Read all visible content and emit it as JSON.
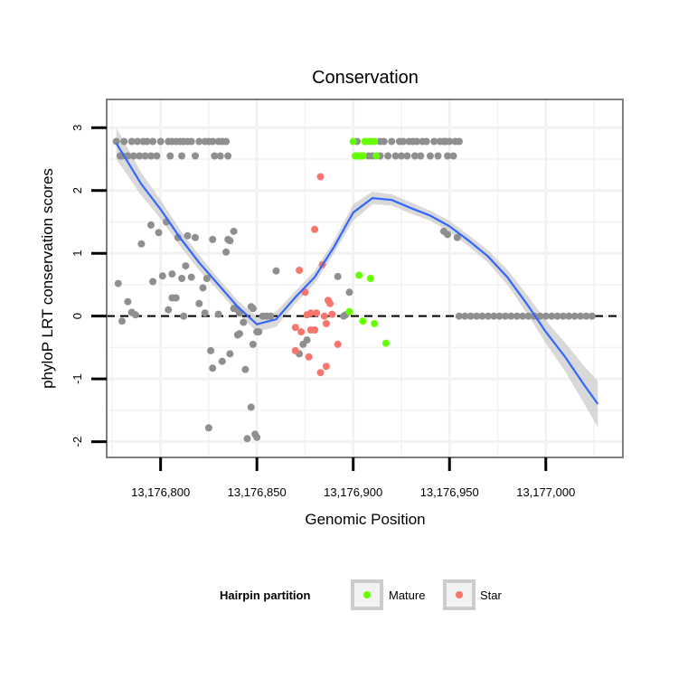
{
  "chart_data": {
    "type": "scatter",
    "title": "Conservation",
    "xlabel": "Genomic Position",
    "ylabel": "phyloP LRT conservation scores",
    "xlim": [
      13176772,
      13177040
    ],
    "ylim": [
      -2.25,
      3.45
    ],
    "x_ticks": [
      13176800,
      13176850,
      13176900,
      13176950,
      13177000
    ],
    "x_tick_labels": [
      "13,176,800",
      "13,176,850",
      "13,176,900",
      "13,176,950",
      "13,177,000"
    ],
    "y_ticks": [
      -2,
      -1,
      0,
      1,
      2,
      3
    ],
    "y_tick_labels": [
      "-2",
      "-1",
      "0",
      "1",
      "2",
      "3"
    ],
    "reference_line": 0,
    "legend": {
      "title": "Hairpin partition",
      "position": "bottom",
      "entries": [
        {
          "label": "Mature",
          "color": "#66ff00"
        },
        {
          "label": "Star",
          "color": "#f8766d"
        }
      ]
    },
    "colors": {
      "other": "#8f8f8f",
      "Mature": "#66ff00",
      "Star": "#f8766d",
      "smooth": "#3366ff",
      "band": "#cccccc"
    },
    "series": [
      {
        "name": "Other",
        "points": [
          [
            13176777,
            2.78
          ],
          [
            13176779,
            2.55
          ],
          [
            13176780,
            2.55
          ],
          [
            13176781,
            2.78
          ],
          [
            13176783,
            2.55
          ],
          [
            13176785,
            2.78
          ],
          [
            13176786,
            2.55
          ],
          [
            13176788,
            2.78
          ],
          [
            13176789,
            2.55
          ],
          [
            13176791,
            2.78
          ],
          [
            13176792,
            2.55
          ],
          [
            13176793,
            2.78
          ],
          [
            13176795,
            2.55
          ],
          [
            13176796,
            2.78
          ],
          [
            13176798,
            2.55
          ],
          [
            13176800,
            2.78
          ],
          [
            13176804,
            2.78
          ],
          [
            13176805,
            2.55
          ],
          [
            13176806,
            2.78
          ],
          [
            13176808,
            2.78
          ],
          [
            13176810,
            2.78
          ],
          [
            13176811,
            2.55
          ],
          [
            13176812,
            2.78
          ],
          [
            13176814,
            2.78
          ],
          [
            13176816,
            2.78
          ],
          [
            13176818,
            2.55
          ],
          [
            13176820,
            2.78
          ],
          [
            13176823,
            2.78
          ],
          [
            13176825,
            2.78
          ],
          [
            13176827,
            2.78
          ],
          [
            13176828,
            2.55
          ],
          [
            13176830,
            2.78
          ],
          [
            13176831,
            2.55
          ],
          [
            13176832,
            2.78
          ],
          [
            13176834,
            2.78
          ],
          [
            13176835,
            2.55
          ],
          [
            13176778,
            0.52
          ],
          [
            13176780,
            -0.08
          ],
          [
            13176783,
            0.23
          ],
          [
            13176785,
            0.06
          ],
          [
            13176787,
            0.02
          ],
          [
            13176790,
            1.15
          ],
          [
            13176795,
            1.45
          ],
          [
            13176796,
            0.55
          ],
          [
            13176799,
            1.33
          ],
          [
            13176801,
            0.64
          ],
          [
            13176803,
            1.5
          ],
          [
            13176804,
            0.1
          ],
          [
            13176806,
            0.67
          ],
          [
            13176806,
            0.29
          ],
          [
            13176808,
            0.29
          ],
          [
            13176809,
            1.25
          ],
          [
            13176811,
            0.6
          ],
          [
            13176812,
            0.0
          ],
          [
            13176813,
            0.8
          ],
          [
            13176814,
            1.28
          ],
          [
            13176816,
            0.62
          ],
          [
            13176818,
            1.25
          ],
          [
            13176820,
            0.2
          ],
          [
            13176822,
            0.45
          ],
          [
            13176823,
            0.05
          ],
          [
            13176824,
            0.6
          ],
          [
            13176825,
            -1.78
          ],
          [
            13176826,
            -0.55
          ],
          [
            13176827,
            -0.83
          ],
          [
            13176827,
            1.22
          ],
          [
            13176830,
            0.03
          ],
          [
            13176832,
            -0.72
          ],
          [
            13176834,
            1.02
          ],
          [
            13176835,
            1.22
          ],
          [
            13176836,
            -0.6
          ],
          [
            13176836,
            1.2
          ],
          [
            13176838,
            0.12
          ],
          [
            13176838,
            1.35
          ],
          [
            13176840,
            -0.3
          ],
          [
            13176840,
            0.1
          ],
          [
            13176841,
            -0.28
          ],
          [
            13176841,
            0.05
          ],
          [
            13176843,
            -0.1
          ],
          [
            13176844,
            -0.85
          ],
          [
            13176845,
            -1.95
          ],
          [
            13176847,
            -1.45
          ],
          [
            13176847,
            0.15
          ],
          [
            13176848,
            0.12
          ],
          [
            13176848,
            -0.45
          ],
          [
            13176849,
            -1.88
          ],
          [
            13176850,
            -1.93
          ],
          [
            13176850,
            -0.25
          ],
          [
            13176851,
            -0.25
          ],
          [
            13176853,
            0.0
          ],
          [
            13176855,
            0.0
          ],
          [
            13176857,
            0.0
          ],
          [
            13176860,
            0.72
          ],
          [
            13176872,
            -0.6
          ],
          [
            13176874,
            -0.45
          ],
          [
            13176876,
            -0.38
          ],
          [
            13176892,
            0.63
          ],
          [
            13176895,
            0.0
          ],
          [
            13176896,
            0.02
          ],
          [
            13176898,
            0.38
          ],
          [
            13176947,
            1.35
          ],
          [
            13176949,
            1.3
          ],
          [
            13176954,
            1.25
          ],
          [
            13176902,
            2.78
          ],
          [
            13176904,
            2.55
          ],
          [
            13176908,
            2.55
          ],
          [
            13176910,
            2.55
          ],
          [
            13176914,
            2.55
          ],
          [
            13176914,
            2.78
          ],
          [
            13176916,
            2.78
          ],
          [
            13176918,
            2.55
          ],
          [
            13176920,
            2.78
          ],
          [
            13176922,
            2.55
          ],
          [
            13176924,
            2.78
          ],
          [
            13176925,
            2.55
          ],
          [
            13176926,
            2.78
          ],
          [
            13176928,
            2.55
          ],
          [
            13176929,
            2.78
          ],
          [
            13176931,
            2.78
          ],
          [
            13176932,
            2.55
          ],
          [
            13176933,
            2.78
          ],
          [
            13176935,
            2.55
          ],
          [
            13176936,
            2.78
          ],
          [
            13176938,
            2.78
          ],
          [
            13176940,
            2.55
          ],
          [
            13176942,
            2.78
          ],
          [
            13176944,
            2.55
          ],
          [
            13176945,
            2.78
          ],
          [
            13176947,
            2.78
          ],
          [
            13176948,
            2.78
          ],
          [
            13176949,
            2.55
          ],
          [
            13176950,
            2.78
          ],
          [
            13176952,
            2.55
          ],
          [
            13176953,
            2.78
          ],
          [
            13176955,
            2.78
          ],
          [
            13176955,
            0.0
          ],
          [
            13176958,
            0.0
          ],
          [
            13176961,
            0.0
          ],
          [
            13176964,
            0.0
          ],
          [
            13176967,
            0.0
          ],
          [
            13176970,
            0.0
          ],
          [
            13176973,
            0.0
          ],
          [
            13176976,
            0.0
          ],
          [
            13176979,
            0.0
          ],
          [
            13176982,
            0.0
          ],
          [
            13176985,
            0.0
          ],
          [
            13176988,
            0.0
          ],
          [
            13176991,
            0.0
          ],
          [
            13176994,
            0.0
          ],
          [
            13176997,
            0.0
          ],
          [
            13177000,
            0.0
          ],
          [
            13177003,
            0.0
          ],
          [
            13177006,
            0.0
          ],
          [
            13177009,
            0.0
          ],
          [
            13177012,
            0.0
          ],
          [
            13177015,
            0.0
          ],
          [
            13177018,
            0.0
          ],
          [
            13177021,
            0.0
          ],
          [
            13177024,
            0.0
          ]
        ]
      },
      {
        "name": "Mature",
        "points": [
          [
            13176900,
            2.78
          ],
          [
            13176901,
            2.55
          ],
          [
            13176902,
            2.55
          ],
          [
            13176903,
            2.55
          ],
          [
            13176904,
            2.55
          ],
          [
            13176905,
            2.55
          ],
          [
            13176906,
            2.78
          ],
          [
            13176907,
            2.78
          ],
          [
            13176909,
            2.78
          ],
          [
            13176911,
            2.78
          ],
          [
            13176912,
            2.55
          ],
          [
            13176903,
            0.65
          ],
          [
            13176905,
            -0.08
          ],
          [
            13176909,
            0.6
          ],
          [
            13176911,
            -0.12
          ],
          [
            13176917,
            -0.43
          ],
          [
            13176898,
            0.07
          ]
        ]
      },
      {
        "name": "Star",
        "points": [
          [
            13176872,
            0.73
          ],
          [
            13176875,
            0.38
          ],
          [
            13176876,
            0.02
          ],
          [
            13176878,
            0.05
          ],
          [
            13176878,
            -0.22
          ],
          [
            13176880,
            1.38
          ],
          [
            13176880,
            -0.22
          ],
          [
            13176881,
            0.05
          ],
          [
            13176883,
            2.22
          ],
          [
            13176883,
            -0.9
          ],
          [
            13176884,
            0.82
          ],
          [
            13176885,
            0.0
          ],
          [
            13176886,
            -0.12
          ],
          [
            13176887,
            0.25
          ],
          [
            13176888,
            0.2
          ],
          [
            13176889,
            0.03
          ],
          [
            13176892,
            -0.45
          ],
          [
            13176870,
            -0.55
          ],
          [
            13176870,
            -0.18
          ],
          [
            13176873,
            -0.25
          ],
          [
            13176877,
            -0.65
          ],
          [
            13176886,
            -0.8
          ]
        ]
      }
    ],
    "smooth": {
      "x": [
        13176777,
        13176790,
        13176800,
        13176810,
        13176820,
        13176830,
        13176840,
        13176850,
        13176860,
        13176870,
        13176880,
        13176890,
        13176900,
        13176910,
        13176920,
        13176930,
        13176940,
        13176950,
        13176960,
        13176970,
        13176980,
        13176990,
        13177000,
        13177010,
        13177020,
        13177027
      ],
      "y": [
        2.75,
        2.1,
        1.7,
        1.25,
        0.85,
        0.5,
        0.15,
        -0.13,
        -0.05,
        0.3,
        0.62,
        1.1,
        1.65,
        1.88,
        1.85,
        1.72,
        1.6,
        1.43,
        1.2,
        0.95,
        0.62,
        0.2,
        -0.25,
        -0.65,
        -1.1,
        -1.4
      ],
      "lo": [
        2.5,
        1.92,
        1.55,
        1.12,
        0.73,
        0.4,
        0.05,
        -0.25,
        -0.17,
        0.2,
        0.52,
        1.0,
        1.52,
        1.78,
        1.76,
        1.63,
        1.52,
        1.34,
        1.11,
        0.85,
        0.5,
        0.05,
        -0.43,
        -0.88,
        -1.4,
        -1.77
      ],
      "hi": [
        3.0,
        2.28,
        1.85,
        1.38,
        0.97,
        0.6,
        0.25,
        -0.01,
        0.07,
        0.4,
        0.72,
        1.2,
        1.78,
        1.98,
        1.94,
        1.81,
        1.68,
        1.52,
        1.29,
        1.05,
        0.74,
        0.35,
        -0.07,
        -0.42,
        -0.8,
        -1.03
      ]
    }
  }
}
